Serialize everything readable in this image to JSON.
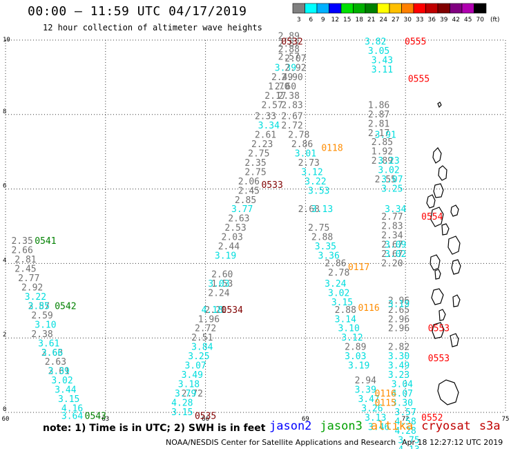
{
  "header": {
    "title": "00:00 – 11:59 UTC 04/17/2019",
    "subtitle": "12 hour collection of altimeter wave heights"
  },
  "legend": {
    "labels": [
      "3",
      "6",
      "9",
      "12",
      "15",
      "18",
      "21",
      "24",
      "27",
      "30",
      "33",
      "36",
      "39",
      "42",
      "45",
      "70",
      "(ft)"
    ],
    "colors": [
      "#808080",
      "#00ffff",
      "#00b0ff",
      "#0000ff",
      "#00e000",
      "#00b000",
      "#008000",
      "#ffff00",
      "#ffc000",
      "#ff8000",
      "#ff0000",
      "#c00000",
      "#800000",
      "#800080",
      "#b000b0",
      "#000000"
    ]
  },
  "footer": {
    "note": "note: 1) Time is in UTC; 2) SWH is in feet",
    "satellites": [
      {
        "name": "jason2",
        "color": "#0000ff"
      },
      {
        "name": "jason3",
        "color": "#00a000"
      },
      {
        "name": "altika",
        "color": "#ff8c00"
      },
      {
        "name": "cryosat",
        "color": "#c00000"
      },
      {
        "name": "s3a",
        "color": "#c00000"
      }
    ],
    "credit": "NOAA/NESDIS Center for Satellite Applications and Research",
    "stamp": "Apr 18 12:27:12 UTC 2019"
  },
  "chart_data": {
    "type": "scatter",
    "xlim": [
      60,
      75
    ],
    "ylim": [
      0,
      10
    ],
    "xticks": [
      60,
      63,
      66,
      69,
      72,
      75
    ],
    "yticks": [
      0,
      2,
      4,
      6,
      8,
      10
    ],
    "grid": true,
    "series": [
      {
        "color": "#707070",
        "points": [
          [
            60.5,
            4.6,
            "2.35"
          ],
          [
            60.5,
            4.35,
            "2.66"
          ],
          [
            60.6,
            4.1,
            "2.81"
          ],
          [
            60.6,
            3.85,
            "2.45"
          ],
          [
            60.7,
            3.6,
            "2.77"
          ],
          [
            60.8,
            3.35,
            "2.92"
          ],
          [
            61.0,
            2.85,
            "2.57"
          ],
          [
            61.1,
            2.6,
            "2.59"
          ],
          [
            61.1,
            2.1,
            "2.38"
          ],
          [
            61.4,
            1.6,
            "2.63"
          ],
          [
            61.5,
            1.35,
            "2.63"
          ],
          [
            61.6,
            1.1,
            "2.61"
          ]
        ]
      },
      {
        "color": "#00dddd",
        "points": [
          [
            60.9,
            3.1,
            "3.22"
          ],
          [
            61.0,
            2.85,
            "3.85"
          ],
          [
            61.2,
            2.35,
            "3.10"
          ],
          [
            61.3,
            1.85,
            "3.61"
          ],
          [
            61.4,
            1.6,
            "3.66"
          ],
          [
            61.6,
            1.1,
            "3.39"
          ],
          [
            61.7,
            0.85,
            "3.02"
          ],
          [
            61.8,
            0.6,
            "3.44"
          ],
          [
            61.9,
            0.35,
            "3.15"
          ],
          [
            62.0,
            0.1,
            "4.16"
          ],
          [
            62.0,
            -0.1,
            "3.64"
          ]
        ]
      },
      {
        "color": "#707070",
        "points": [
          [
            68.5,
            10.1,
            "2.89"
          ],
          [
            68.5,
            9.9,
            "2.87"
          ],
          [
            68.5,
            9.75,
            "2.88"
          ],
          [
            68.5,
            9.55,
            "2.57"
          ],
          [
            68.3,
            9.0,
            "2.49"
          ],
          [
            68.2,
            8.75,
            "1.70"
          ],
          [
            68.1,
            8.5,
            "2.17"
          ],
          [
            68.0,
            8.25,
            "2.57"
          ],
          [
            67.8,
            7.95,
            "2.33"
          ],
          [
            67.8,
            7.45,
            "2.61"
          ],
          [
            67.7,
            7.2,
            "2.23"
          ],
          [
            67.6,
            6.95,
            "2.75"
          ],
          [
            67.5,
            6.7,
            "2.35"
          ],
          [
            67.5,
            6.45,
            "2.75"
          ],
          [
            67.3,
            6.2,
            "2.06"
          ],
          [
            67.3,
            5.95,
            "2.45"
          ],
          [
            67.2,
            5.7,
            "2.85"
          ],
          [
            67.0,
            5.2,
            "2.63"
          ],
          [
            66.9,
            4.95,
            "2.53"
          ],
          [
            66.8,
            4.7,
            "2.03"
          ],
          [
            66.7,
            4.45,
            "2.44"
          ],
          [
            66.5,
            3.7,
            "2.60"
          ],
          [
            66.5,
            3.45,
            "1.53"
          ],
          [
            66.4,
            3.2,
            "2.24"
          ],
          [
            66.3,
            2.75,
            "2.21"
          ],
          [
            66.1,
            2.5,
            "1.96"
          ],
          [
            66.0,
            2.25,
            "2.72"
          ],
          [
            65.9,
            2.0,
            "2.51"
          ],
          [
            65.6,
            0.5,
            "2.72"
          ]
        ]
      },
      {
        "color": "#00dddd",
        "points": [
          [
            68.4,
            9.25,
            "3.39"
          ],
          [
            67.9,
            7.7,
            "3.34"
          ],
          [
            67.1,
            5.45,
            "3.77"
          ],
          [
            66.6,
            4.2,
            "3.19"
          ],
          [
            66.4,
            3.45,
            "3.03"
          ],
          [
            66.2,
            2.75,
            "4.18"
          ],
          [
            65.9,
            1.75,
            "3.84"
          ],
          [
            65.8,
            1.5,
            "3.25"
          ],
          [
            65.7,
            1.25,
            "3.07"
          ],
          [
            65.6,
            1.0,
            "3.49"
          ],
          [
            65.5,
            0.75,
            "3.18"
          ],
          [
            65.4,
            0.5,
            "3.79"
          ],
          [
            65.3,
            0.25,
            "4.28"
          ],
          [
            65.3,
            0.0,
            "3.15"
          ]
        ]
      },
      {
        "color": "#707070",
        "points": [
          [
            68.7,
            9.5,
            "2.07"
          ],
          [
            68.7,
            9.25,
            "2.92"
          ],
          [
            68.6,
            9.0,
            "2.90"
          ],
          [
            68.4,
            8.75,
            "2.60"
          ],
          [
            68.5,
            8.5,
            "2.38"
          ],
          [
            68.6,
            8.25,
            "2.83"
          ],
          [
            68.6,
            7.95,
            "2.67"
          ],
          [
            68.6,
            7.7,
            "2.72"
          ],
          [
            68.8,
            7.45,
            "2.78"
          ],
          [
            68.9,
            7.2,
            "2.86"
          ],
          [
            69.1,
            6.7,
            "2.73"
          ],
          [
            69.1,
            5.45,
            "2.68"
          ],
          [
            69.4,
            4.95,
            "2.75"
          ],
          [
            69.5,
            4.7,
            "2.88"
          ],
          [
            69.9,
            4.0,
            "2.86"
          ],
          [
            70.0,
            3.75,
            "2.78"
          ],
          [
            70.2,
            2.75,
            "2.88"
          ],
          [
            70.5,
            1.75,
            "2.89"
          ],
          [
            70.8,
            0.85,
            "2.94"
          ]
        ]
      },
      {
        "color": "#00dddd",
        "points": [
          [
            69.0,
            6.95,
            "3.01"
          ],
          [
            69.2,
            6.45,
            "3.12"
          ],
          [
            69.3,
            6.2,
            "3.22"
          ],
          [
            69.4,
            5.95,
            "3.53"
          ],
          [
            69.5,
            5.45,
            "3.13"
          ],
          [
            69.6,
            4.45,
            "3.35"
          ],
          [
            69.7,
            4.2,
            "3.36"
          ],
          [
            69.9,
            3.45,
            "3.24"
          ],
          [
            70.0,
            3.2,
            "3.02"
          ],
          [
            70.1,
            2.95,
            "3.15"
          ],
          [
            70.2,
            2.5,
            "3.14"
          ],
          [
            70.3,
            2.25,
            "3.10"
          ],
          [
            70.4,
            2.0,
            "3.12"
          ],
          [
            70.5,
            1.5,
            "3.03"
          ],
          [
            70.6,
            1.25,
            "3.19"
          ],
          [
            70.8,
            0.6,
            "3.39"
          ],
          [
            70.9,
            0.35,
            "3.47"
          ],
          [
            71.0,
            0.1,
            "3.26"
          ],
          [
            71.1,
            -0.15,
            "3.13"
          ],
          [
            71.2,
            -0.4,
            "3.46"
          ]
        ]
      },
      {
        "color": "#707070",
        "points": [
          [
            71.2,
            8.25,
            "1.86"
          ],
          [
            71.2,
            8.0,
            "2.87"
          ],
          [
            71.2,
            7.75,
            "2.81"
          ],
          [
            71.2,
            7.5,
            "2.17"
          ],
          [
            71.3,
            7.25,
            "2.85"
          ],
          [
            71.3,
            7.0,
            "1.92"
          ],
          [
            71.3,
            6.75,
            "2.89"
          ],
          [
            71.4,
            6.25,
            "2.55"
          ],
          [
            71.6,
            5.25,
            "2.77"
          ],
          [
            71.6,
            5.0,
            "2.83"
          ],
          [
            71.6,
            4.75,
            "2.34"
          ],
          [
            71.6,
            4.5,
            "2.67"
          ],
          [
            71.6,
            4.25,
            "2.67"
          ],
          [
            71.6,
            4.0,
            "2.20"
          ],
          [
            71.8,
            3.0,
            "2.96"
          ],
          [
            71.8,
            2.75,
            "2.65"
          ],
          [
            71.8,
            2.5,
            "2.96"
          ],
          [
            71.8,
            2.25,
            "2.96"
          ],
          [
            71.8,
            1.75,
            "2.82"
          ]
        ]
      },
      {
        "color": "#00dddd",
        "points": [
          [
            71.1,
            9.95,
            "3.82"
          ],
          [
            71.2,
            9.7,
            "3.05"
          ],
          [
            71.3,
            9.45,
            "3.43"
          ],
          [
            71.3,
            9.2,
            "3.11"
          ],
          [
            71.4,
            7.45,
            "3.91"
          ],
          [
            71.5,
            6.75,
            "3.23"
          ],
          [
            71.5,
            6.5,
            "3.02"
          ],
          [
            71.6,
            6.25,
            "3.07"
          ],
          [
            71.6,
            6.0,
            "3.25"
          ],
          [
            71.7,
            5.45,
            "3.34"
          ],
          [
            71.7,
            4.5,
            "3.09"
          ],
          [
            71.7,
            4.25,
            "3.02"
          ],
          [
            71.8,
            2.9,
            "3.19"
          ],
          [
            71.8,
            1.5,
            "3.30"
          ],
          [
            71.8,
            1.25,
            "3.49"
          ],
          [
            71.8,
            1.0,
            "3.23"
          ],
          [
            71.9,
            0.75,
            "3.04"
          ],
          [
            71.9,
            0.5,
            "4.07"
          ],
          [
            71.9,
            0.25,
            "3.30"
          ],
          [
            72.0,
            0.0,
            "3.57"
          ],
          [
            72.0,
            -0.25,
            "4.58"
          ],
          [
            72.0,
            -0.5,
            "4.28"
          ],
          [
            72.1,
            -0.75,
            "3.75"
          ],
          [
            72.1,
            -1.0,
            "4.13"
          ]
        ]
      },
      {
        "color": "#ff8c00",
        "points": [
          [
            69.8,
            7.1,
            "0118"
          ],
          [
            70.6,
            3.9,
            "0117"
          ],
          [
            70.9,
            2.8,
            "0116"
          ],
          [
            71.4,
            0.5,
            "0116"
          ],
          [
            71.4,
            0.25,
            "0115"
          ]
        ]
      },
      {
        "color": "#800000",
        "points": [
          [
            68.6,
            9.95,
            "0532"
          ],
          [
            68.0,
            6.1,
            "0533"
          ],
          [
            66.8,
            2.75,
            "0534"
          ],
          [
            66.0,
            -0.1,
            "0535"
          ]
        ]
      },
      {
        "color": "#ff0000",
        "points": [
          [
            72.3,
            9.95,
            "0555"
          ],
          [
            72.4,
            8.95,
            "0555"
          ],
          [
            72.8,
            5.25,
            "0554"
          ],
          [
            73.0,
            2.25,
            "0553"
          ],
          [
            73.0,
            1.45,
            "0553"
          ],
          [
            72.8,
            -0.15,
            "0552"
          ]
        ]
      },
      {
        "color": "#008000",
        "points": [
          [
            61.2,
            4.6,
            "0541"
          ],
          [
            61.8,
            2.85,
            "0542"
          ],
          [
            62.7,
            -0.1,
            "0543"
          ]
        ]
      }
    ]
  }
}
